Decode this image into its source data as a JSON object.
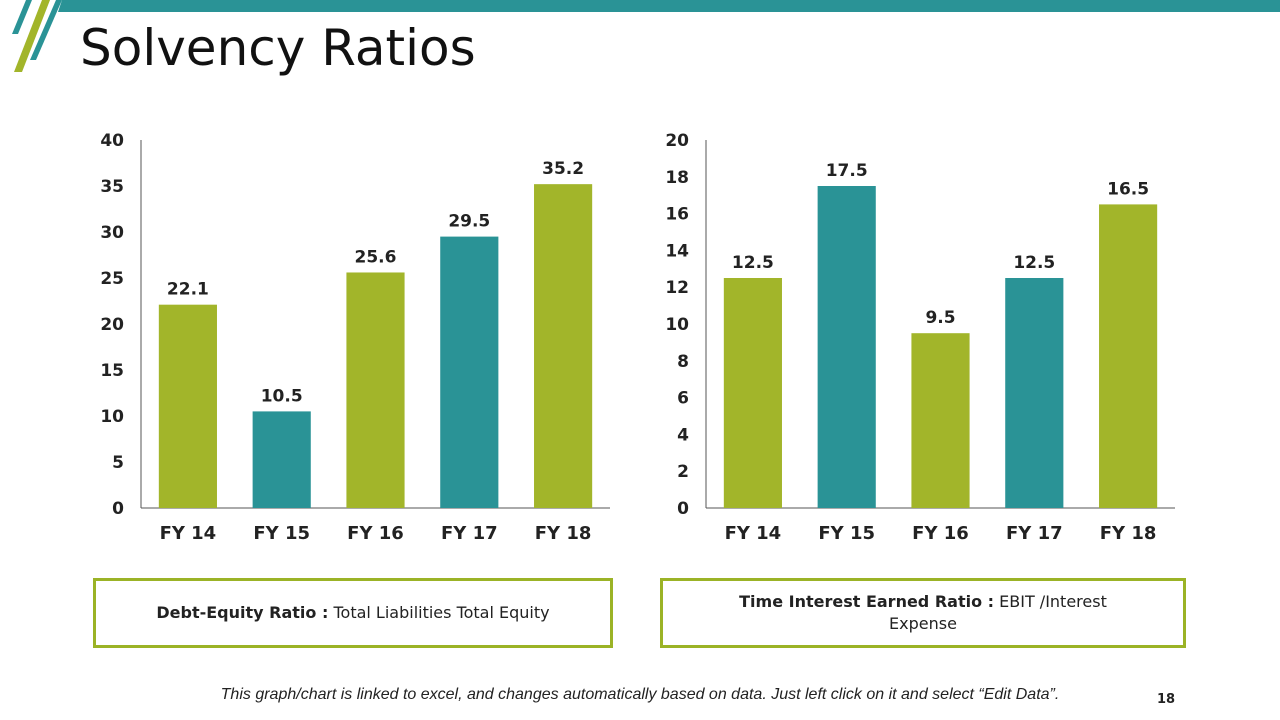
{
  "title": "Solvency Ratios",
  "colors": {
    "green": "#a2b52a",
    "teal": "#2a9396",
    "border": "#9bb326",
    "axis": "#555555"
  },
  "chart_data": [
    {
      "type": "bar",
      "categories": [
        "FY 14",
        "FY 15",
        "FY 16",
        "FY 17",
        "FY 18"
      ],
      "values": [
        22.1,
        10.5,
        25.6,
        29.5,
        35.2
      ],
      "value_labels": [
        "22.1",
        "10.5",
        "25.6",
        "29.5",
        "35.2"
      ],
      "bar_colors": [
        "#a2b52a",
        "#2a9396",
        "#a2b52a",
        "#2a9396",
        "#a2b52a"
      ],
      "ylim": [
        0,
        40
      ],
      "yticks": [
        0,
        5,
        10,
        15,
        20,
        25,
        30,
        35,
        40
      ],
      "grid": false
    },
    {
      "type": "bar",
      "categories": [
        "FY 14",
        "FY 15",
        "FY 16",
        "FY 17",
        "FY 18"
      ],
      "values": [
        12.5,
        17.5,
        9.5,
        12.5,
        16.5
      ],
      "value_labels": [
        "12.5",
        "17.5",
        "9.5",
        "12.5",
        "16.5"
      ],
      "bar_colors": [
        "#a2b52a",
        "#2a9396",
        "#a2b52a",
        "#2a9396",
        "#a2b52a"
      ],
      "ylim": [
        0,
        20
      ],
      "yticks": [
        0,
        2,
        4,
        6,
        8,
        10,
        12,
        14,
        16,
        18,
        20
      ],
      "grid": false
    }
  ],
  "notes": {
    "left": {
      "term": "Debt-Equity Ratio :",
      "text": "Total Liabilities  Total Equity"
    },
    "right": {
      "term": "Time Interest Earned Ratio :",
      "text": "EBIT /Interest Expense"
    }
  },
  "footer": "This graph/chart is linked to excel, and changes automatically based on data. Just left click on it and select “Edit Data”.",
  "page_number": "18"
}
